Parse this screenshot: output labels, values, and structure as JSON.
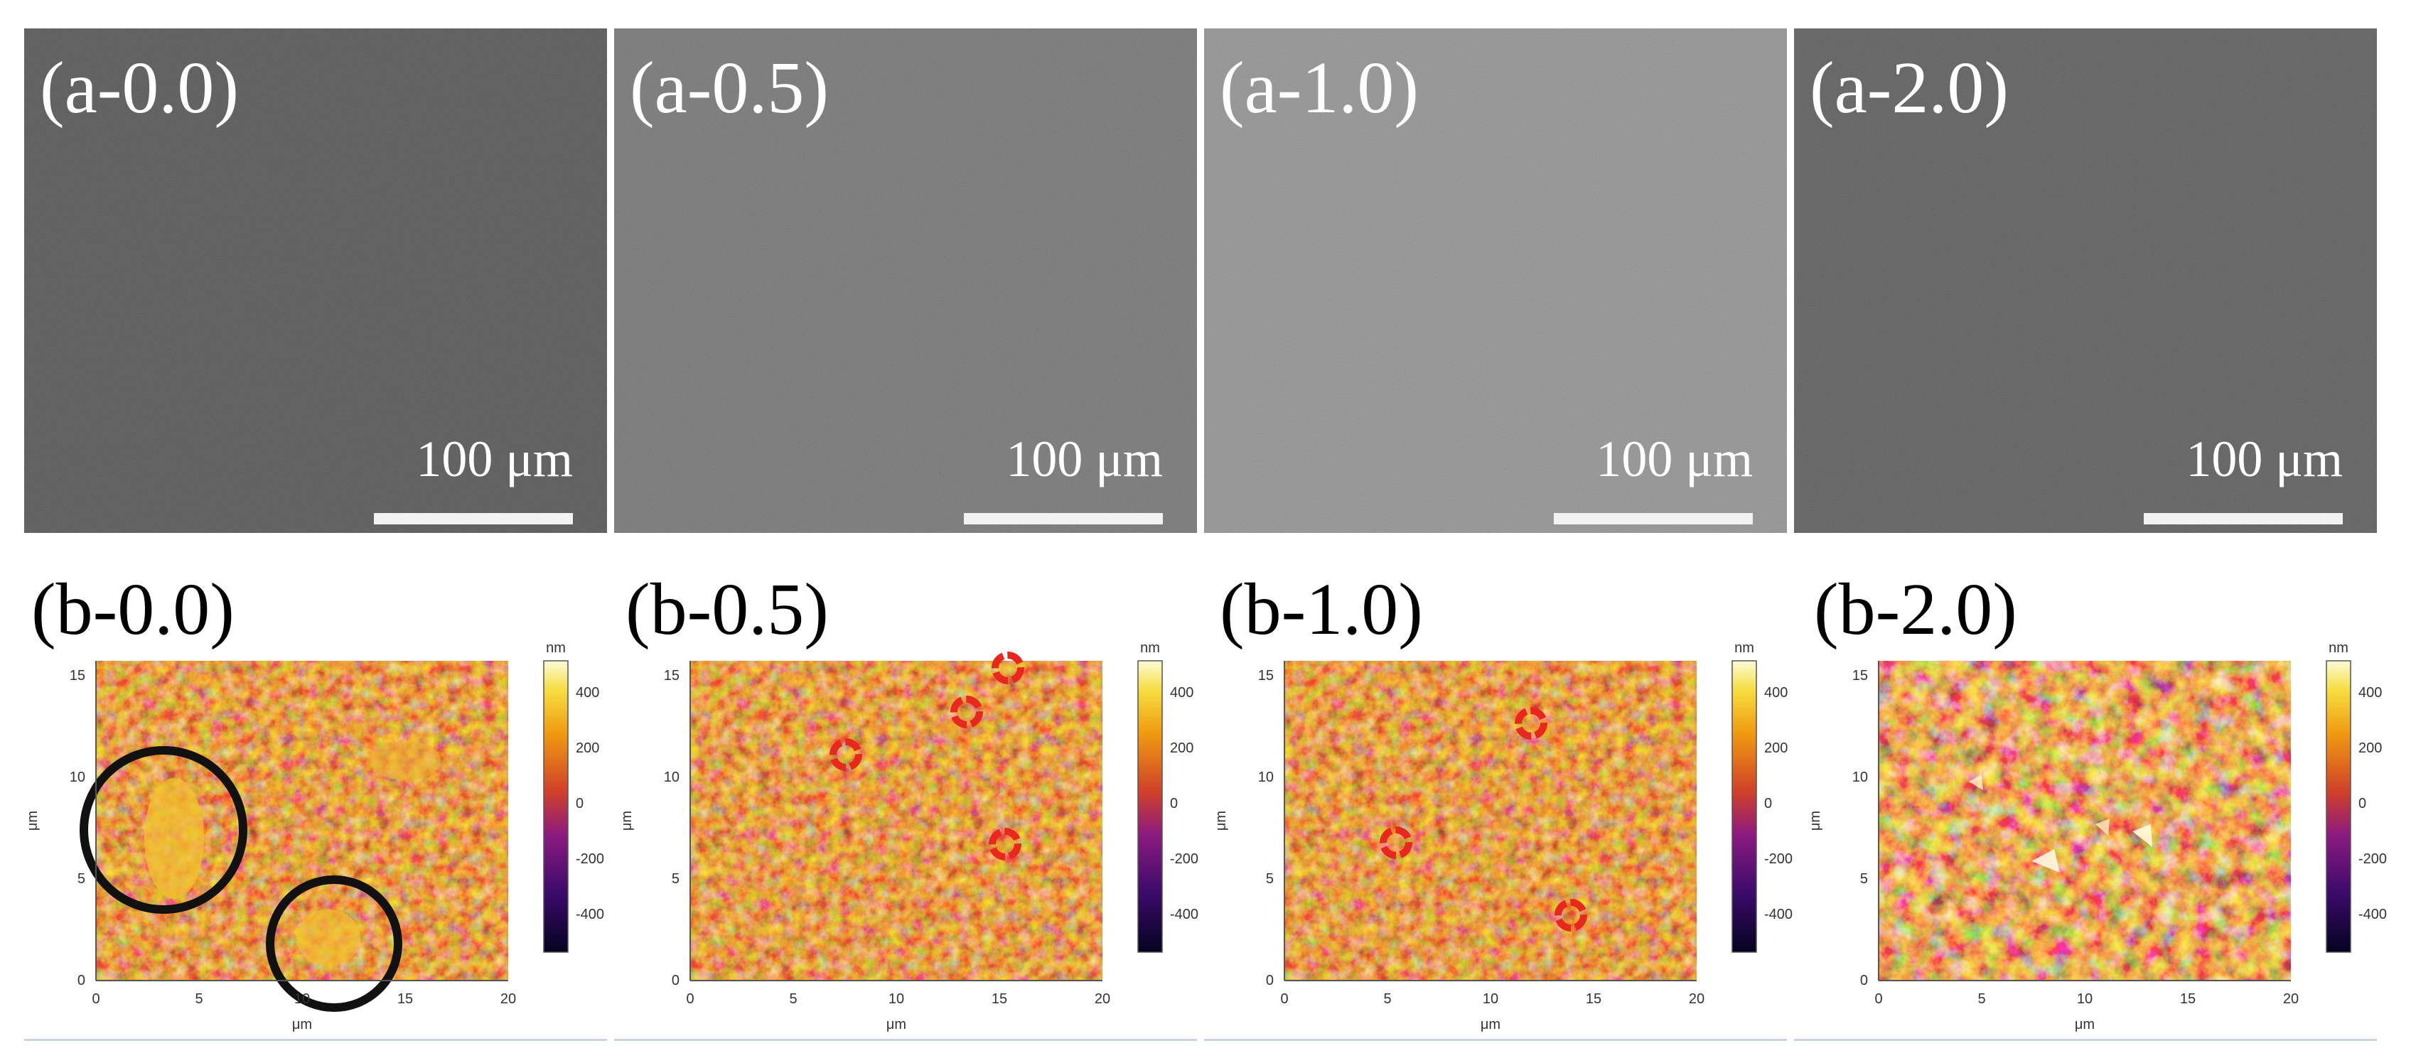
{
  "sem_panels": [
    {
      "label": "(a-0.0)",
      "scale": "100 μm"
    },
    {
      "label": "(a-0.5)",
      "scale": "100 μm"
    },
    {
      "label": "(a-1.0)",
      "scale": "100 μm"
    },
    {
      "label": "(a-2.0)",
      "scale": "100 μm"
    }
  ],
  "afm_panels": [
    {
      "label": "(b-0.0)"
    },
    {
      "label": "(b-0.5)"
    },
    {
      "label": "(b-1.0)"
    },
    {
      "label": "(b-2.0)"
    }
  ],
  "afm_axes": {
    "x_unit": "μm",
    "y_unit": "μm",
    "x_ticks": [
      "0",
      "5",
      "10",
      "15",
      "20"
    ],
    "y_ticks": [
      "0",
      "5",
      "10",
      "15"
    ]
  },
  "colorbar": {
    "unit": "nm",
    "ticks": [
      "400",
      "200",
      "0",
      "-200",
      "-400"
    ]
  },
  "colors": {
    "annotation_circle": "#111111",
    "annotation_marker": "#e8281c"
  }
}
